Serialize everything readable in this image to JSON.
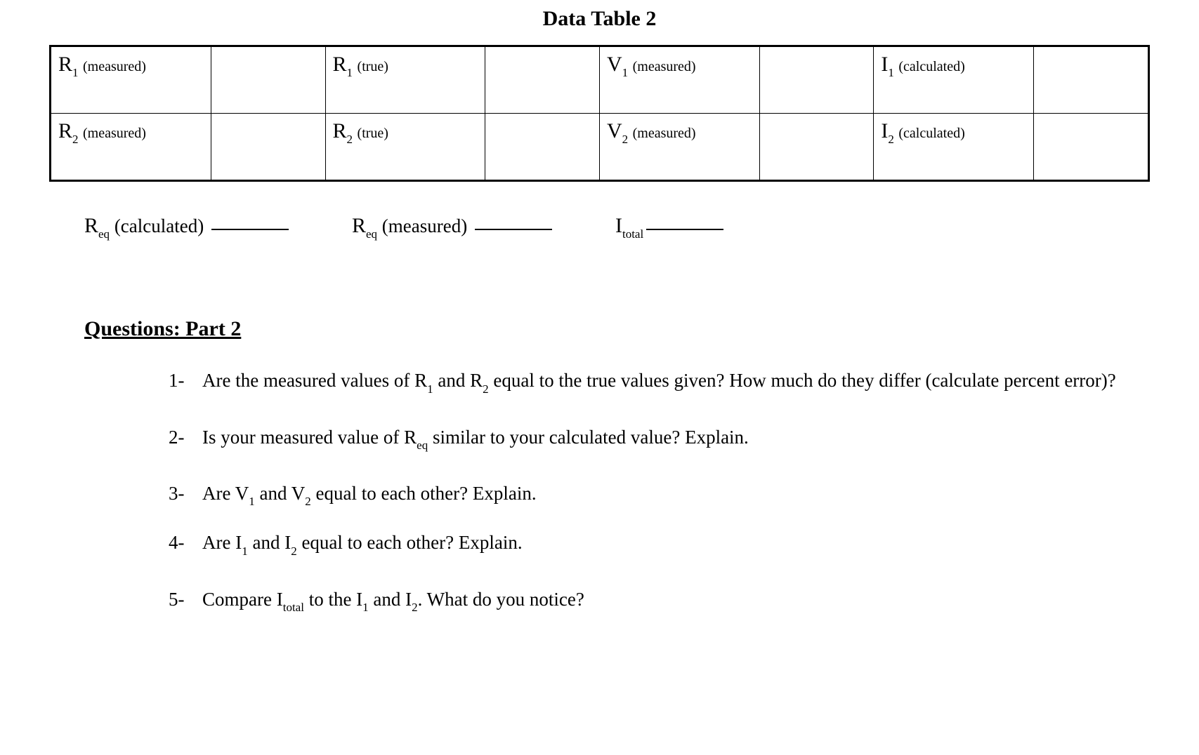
{
  "title": "Data Table 2",
  "table": {
    "rows": [
      [
        {
          "sym": "R",
          "sub": "1",
          "paren": "(measured)"
        },
        {
          "sym": "R",
          "sub": "1",
          "paren": "(true)"
        },
        {
          "sym": "V",
          "sub": "1",
          "paren": "(measured)"
        },
        {
          "sym": "I",
          "sub": "1",
          "paren": "(calculated)"
        }
      ],
      [
        {
          "sym": "R",
          "sub": "2",
          "paren": "(measured)"
        },
        {
          "sym": "R",
          "sub": "2",
          "paren": "(true)"
        },
        {
          "sym": "V",
          "sub": "2",
          "paren": "(measured)"
        },
        {
          "sym": "I",
          "sub": "2",
          "paren": "(calculated)"
        }
      ]
    ]
  },
  "below": {
    "item1": {
      "sym": "R",
      "sub": "eq",
      "paren": "(calculated)"
    },
    "item2": {
      "sym": "R",
      "sub": "eq",
      "paren": "(measured)"
    },
    "item3": {
      "sym": "I",
      "sub": "total",
      "paren": ""
    }
  },
  "questions_header": "Questions: Part 2",
  "questions": {
    "q1": {
      "pre": "Are the measured values of R",
      "sub1": "1",
      "mid1": " and R",
      "sub2": "2",
      "post": " equal to the true values given? How much do they differ (calculate percent error)?"
    },
    "q2": {
      "pre": "Is your measured value of R",
      "sub1": "eq",
      "post": " similar to your calculated value? Explain."
    },
    "q3": {
      "pre": "Are V",
      "sub1": "1",
      "mid1": " and V",
      "sub2": "2",
      "post": " equal to each other? Explain."
    },
    "q4": {
      "pre": "Are I",
      "sub1": "1",
      "mid1": " and I",
      "sub2": "2",
      "post": " equal to each other? Explain."
    },
    "q5": {
      "pre": "Compare I",
      "sub1": "total",
      "mid1": " to the I",
      "sub2": "1",
      "mid2": " and I",
      "sub3": "2",
      "post": ". What do you notice?"
    }
  }
}
